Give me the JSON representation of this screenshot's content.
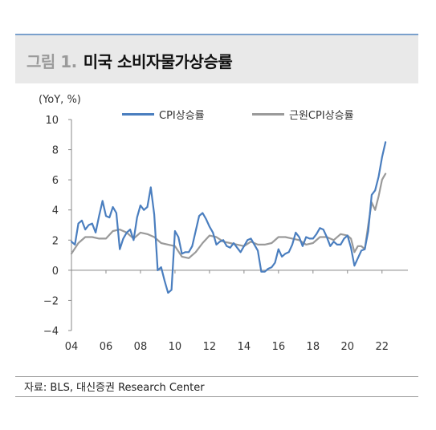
{
  "header": {
    "figure_number": "그림 1.",
    "title": "미국 소비자물가상승률"
  },
  "chart_data": {
    "type": "line",
    "unit_label": "(YoY, %)",
    "xlabel": "",
    "ylabel": "",
    "xlim": [
      2004,
      2023.5
    ],
    "ylim": [
      -4,
      10
    ],
    "y_ticks": [
      10,
      8,
      6,
      4,
      2,
      0,
      -2,
      -4
    ],
    "y_tick_labels": [
      "10",
      "8",
      "6",
      "4",
      "2",
      "0",
      "−2",
      "−4"
    ],
    "x_ticks": [
      2004,
      2006,
      2008,
      2010,
      2012,
      2014,
      2016,
      2018,
      2020,
      2022
    ],
    "x_tick_labels": [
      "04",
      "06",
      "08",
      "10",
      "12",
      "14",
      "16",
      "18",
      "20",
      "22"
    ],
    "grid": false,
    "legend_position": "top",
    "series": [
      {
        "name": "CPI상승률",
        "color": "#4a7ebf",
        "x": [
          2004.0,
          2004.2,
          2004.4,
          2004.6,
          2004.8,
          2005.0,
          2005.2,
          2005.4,
          2005.6,
          2005.8,
          2006.0,
          2006.2,
          2006.4,
          2006.6,
          2006.8,
          2007.0,
          2007.2,
          2007.4,
          2007.6,
          2007.8,
          2008.0,
          2008.2,
          2008.4,
          2008.6,
          2008.8,
          2009.0,
          2009.2,
          2009.4,
          2009.6,
          2009.8,
          2010.0,
          2010.2,
          2010.4,
          2010.6,
          2010.8,
          2011.0,
          2011.2,
          2011.4,
          2011.6,
          2011.8,
          2012.0,
          2012.2,
          2012.4,
          2012.6,
          2012.8,
          2013.0,
          2013.2,
          2013.4,
          2013.6,
          2013.8,
          2014.0,
          2014.2,
          2014.4,
          2014.6,
          2014.8,
          2015.0,
          2015.2,
          2015.4,
          2015.6,
          2015.8,
          2016.0,
          2016.2,
          2016.4,
          2016.6,
          2016.8,
          2017.0,
          2017.2,
          2017.4,
          2017.6,
          2017.8,
          2018.0,
          2018.2,
          2018.4,
          2018.6,
          2018.8,
          2019.0,
          2019.2,
          2019.4,
          2019.6,
          2019.8,
          2020.0,
          2020.2,
          2020.4,
          2020.6,
          2020.8,
          2021.0,
          2021.2,
          2021.4,
          2021.6,
          2021.8,
          2022.0,
          2022.2
        ],
        "y": [
          1.9,
          1.7,
          3.1,
          3.3,
          2.7,
          3.0,
          3.1,
          2.5,
          3.6,
          4.6,
          3.6,
          3.5,
          4.2,
          3.8,
          1.4,
          2.1,
          2.5,
          2.7,
          2.0,
          3.5,
          4.3,
          4.0,
          4.2,
          5.5,
          3.7,
          0.0,
          0.2,
          -0.7,
          -1.5,
          -1.3,
          2.6,
          2.2,
          1.1,
          1.2,
          1.2,
          1.6,
          2.6,
          3.6,
          3.8,
          3.4,
          2.9,
          2.5,
          1.7,
          1.9,
          2.0,
          1.6,
          1.5,
          1.8,
          1.5,
          1.2,
          1.6,
          2.0,
          2.1,
          1.7,
          1.3,
          -0.1,
          -0.1,
          0.1,
          0.2,
          0.5,
          1.4,
          0.9,
          1.1,
          1.2,
          1.7,
          2.5,
          2.2,
          1.6,
          2.2,
          2.1,
          2.1,
          2.4,
          2.8,
          2.7,
          2.2,
          1.6,
          1.9,
          1.7,
          1.7,
          2.1,
          2.3,
          1.5,
          0.3,
          0.8,
          1.3,
          1.4,
          2.6,
          5.0,
          5.3,
          6.2,
          7.5,
          8.5
        ]
      },
      {
        "name": "근원CPI상승률",
        "color": "#9a9a9a",
        "x": [
          2004.0,
          2004.4,
          2004.8,
          2005.2,
          2005.6,
          2006.0,
          2006.4,
          2006.8,
          2007.2,
          2007.6,
          2008.0,
          2008.4,
          2008.8,
          2009.2,
          2009.6,
          2010.0,
          2010.4,
          2010.8,
          2011.2,
          2011.6,
          2012.0,
          2012.4,
          2012.8,
          2013.2,
          2013.6,
          2014.0,
          2014.4,
          2014.8,
          2015.2,
          2015.6,
          2016.0,
          2016.4,
          2016.8,
          2017.2,
          2017.6,
          2018.0,
          2018.4,
          2018.8,
          2019.2,
          2019.6,
          2020.0,
          2020.2,
          2020.4,
          2020.6,
          2020.8,
          2021.0,
          2021.2,
          2021.4,
          2021.6,
          2021.8,
          2022.0,
          2022.2
        ],
        "y": [
          1.1,
          1.8,
          2.2,
          2.2,
          2.1,
          2.1,
          2.6,
          2.7,
          2.5,
          2.1,
          2.5,
          2.4,
          2.2,
          1.8,
          1.7,
          1.6,
          0.9,
          0.8,
          1.2,
          1.8,
          2.3,
          2.2,
          1.9,
          1.8,
          1.7,
          1.6,
          1.9,
          1.7,
          1.7,
          1.8,
          2.2,
          2.2,
          2.1,
          2.0,
          1.7,
          1.8,
          2.2,
          2.2,
          2.0,
          2.4,
          2.3,
          2.1,
          1.2,
          1.6,
          1.6,
          1.4,
          3.0,
          4.5,
          4.0,
          4.9,
          6.0,
          6.4
        ]
      }
    ]
  },
  "footer": {
    "source": "자료: BLS, 대신증권 Research Center"
  }
}
